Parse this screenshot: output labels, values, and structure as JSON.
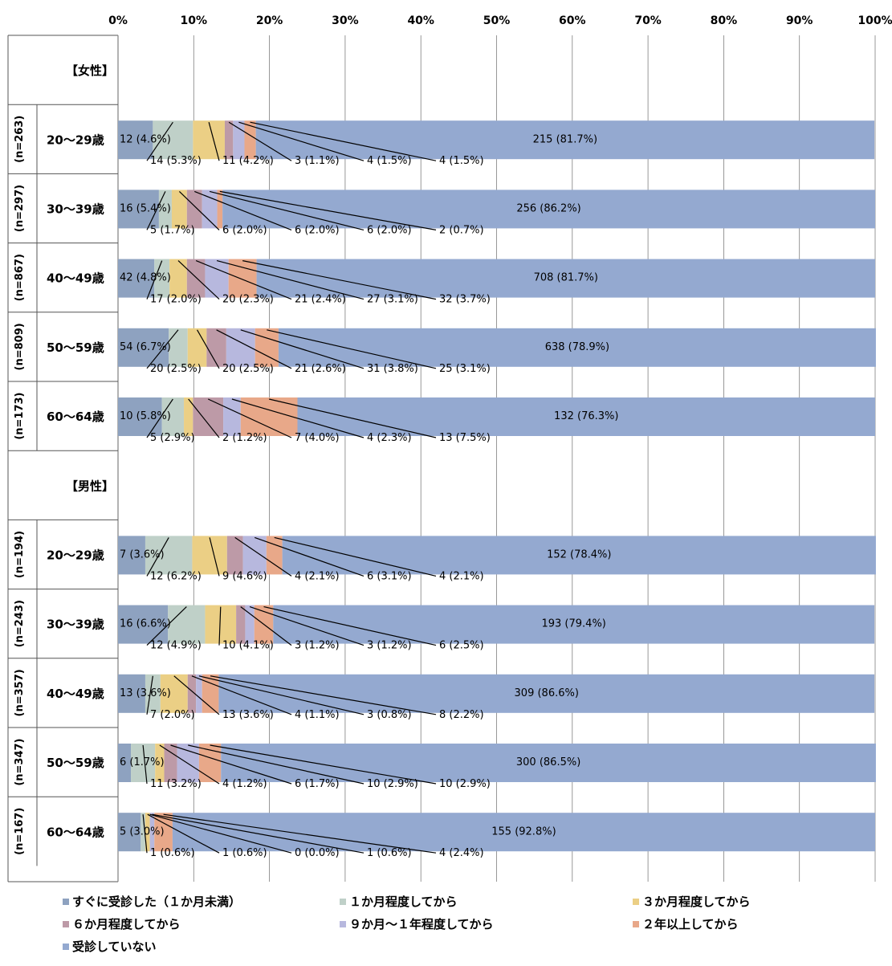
{
  "chart_data": {
    "type": "bar",
    "subtype": "stacked-percent-horizontal",
    "x_ticks": [
      "0%",
      "10%",
      "20%",
      "30%",
      "40%",
      "50%",
      "60%",
      "70%",
      "80%",
      "90%",
      "100%"
    ],
    "xlim": [
      0,
      100
    ],
    "grid": true,
    "legend_position": "bottom",
    "series": [
      {
        "name": "すぐに受診した（１か月未満）",
        "color": "#8ea2c0"
      },
      {
        "name": "１か月程度してから",
        "color": "#bfd0c8"
      },
      {
        "name": "３か月程度してから",
        "color": "#ebcf85"
      },
      {
        "name": "６か月程度してから",
        "color": "#bd9aa7"
      },
      {
        "name": "９か月～１年程度してから",
        "color": "#b7b8de"
      },
      {
        "name": "２年以上してから",
        "color": "#e8a889"
      },
      {
        "name": "受診していない",
        "color": "#94a9d0"
      }
    ],
    "groups": [
      {
        "label": "【女性】",
        "rows": [
          {
            "age": "20～29歳",
            "n": "(n=263)",
            "labels": [
              "12 (4.6%)",
              "14 (5.3%)",
              "11 (4.2%)",
              "3 (1.1%)",
              "4 (1.5%)",
              "4 (1.5%)",
              "215 (81.7%)"
            ],
            "pcts": [
              4.6,
              5.3,
              4.2,
              1.1,
              1.5,
              1.5,
              81.7
            ]
          },
          {
            "age": "30～39歳",
            "n": "(n=297)",
            "labels": [
              "16 (5.4%)",
              "5 (1.7%)",
              "6 (2.0%)",
              "6 (2.0%)",
              "6 (2.0%)",
              "2 (0.7%)",
              "256 (86.2%)"
            ],
            "pcts": [
              5.4,
              1.7,
              2.0,
              2.0,
              2.0,
              0.7,
              86.2
            ]
          },
          {
            "age": "40～49歳",
            "n": "(n=867)",
            "labels": [
              "42 (4.8%)",
              "17 (2.0%)",
              "20 (2.3%)",
              "21 (2.4%)",
              "27 (3.1%)",
              "32 (3.7%)",
              "708 (81.7%)"
            ],
            "pcts": [
              4.8,
              2.0,
              2.3,
              2.4,
              3.1,
              3.7,
              81.7
            ]
          },
          {
            "age": "50～59歳",
            "n": "(n=809)",
            "labels": [
              "54 (6.7%)",
              "20 (2.5%)",
              "20 (2.5%)",
              "21 (2.6%)",
              "31 (3.8%)",
              "25 (3.1%)",
              "638 (78.9%)"
            ],
            "pcts": [
              6.7,
              2.5,
              2.5,
              2.6,
              3.8,
              3.1,
              78.9
            ]
          },
          {
            "age": "60～64歳",
            "n": "(n=173)",
            "labels": [
              "10 (5.8%)",
              "5 (2.9%)",
              "2 (1.2%)",
              "7 (4.0%)",
              "4 (2.3%)",
              "13 (7.5%)",
              "132 (76.3%)"
            ],
            "pcts": [
              5.8,
              2.9,
              1.2,
              4.0,
              2.3,
              7.5,
              76.3
            ]
          }
        ]
      },
      {
        "label": "【男性】",
        "rows": [
          {
            "age": "20～29歳",
            "n": "(n=194)",
            "labels": [
              "7 (3.6%)",
              "12 (6.2%)",
              "9 (4.6%)",
              "4 (2.1%)",
              "6 (3.1%)",
              "4 (2.1%)",
              "152 (78.4%)"
            ],
            "pcts": [
              3.6,
              6.2,
              4.6,
              2.1,
              3.1,
              2.1,
              78.4
            ]
          },
          {
            "age": "30～39歳",
            "n": "(n=243)",
            "labels": [
              "16 (6.6%)",
              "12 (4.9%)",
              "10 (4.1%)",
              "3 (1.2%)",
              "3 (1.2%)",
              "6 (2.5%)",
              "193 (79.4%)"
            ],
            "pcts": [
              6.6,
              4.9,
              4.1,
              1.2,
              1.2,
              2.5,
              79.4
            ]
          },
          {
            "age": "40～49歳",
            "n": "(n=357)",
            "labels": [
              "13 (3.6%)",
              "7 (2.0%)",
              "13 (3.6%)",
              "4 (1.1%)",
              "3 (0.8%)",
              "8 (2.2%)",
              "309 (86.6%)"
            ],
            "pcts": [
              3.6,
              2.0,
              3.6,
              1.1,
              0.8,
              2.2,
              86.6
            ]
          },
          {
            "age": "50～59歳",
            "n": "(n=347)",
            "labels": [
              "6 (1.7%)",
              "11 (3.2%)",
              "4 (1.2%)",
              "6 (1.7%)",
              "10 (2.9%)",
              "10 (2.9%)",
              "300 (86.5%)"
            ],
            "pcts": [
              1.7,
              3.2,
              1.2,
              1.7,
              2.9,
              2.9,
              86.5
            ]
          },
          {
            "age": "60～64歳",
            "n": "(n=167)",
            "labels": [
              "5 (3.0%)",
              "1 (0.6%)",
              "1 (0.6%)",
              "0 (0.0%)",
              "1 (0.6%)",
              "4 (2.4%)",
              "155 (92.8%)"
            ],
            "pcts": [
              3.0,
              0.6,
              0.6,
              0.0,
              0.6,
              2.4,
              92.8
            ]
          }
        ]
      }
    ]
  }
}
